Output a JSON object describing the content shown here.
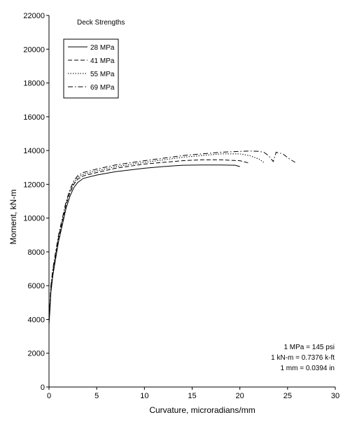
{
  "chart_data": {
    "type": "line",
    "xlabel": "Curvature, microradians/mm",
    "ylabel": "Moment, kN-m",
    "xlim": [
      0,
      30
    ],
    "ylim": [
      0,
      22000
    ],
    "x_ticks": [
      0,
      5,
      10,
      15,
      20,
      25,
      30
    ],
    "y_ticks": [
      0,
      2000,
      4000,
      6000,
      8000,
      10000,
      12000,
      14000,
      16000,
      18000,
      20000,
      22000
    ],
    "grid": false,
    "legend_title": "Deck Strengths",
    "legend_position": "top-left",
    "series": [
      {
        "name": "28 MPa",
        "dash": "solid",
        "points": [
          [
            0,
            3700
          ],
          [
            0.1,
            4600
          ],
          [
            0.2,
            5600
          ],
          [
            0.4,
            6600
          ],
          [
            0.7,
            7600
          ],
          [
            1.0,
            8600
          ],
          [
            1.4,
            9600
          ],
          [
            1.8,
            10600
          ],
          [
            2.2,
            11300
          ],
          [
            2.6,
            11800
          ],
          [
            3.0,
            12100
          ],
          [
            3.6,
            12350
          ],
          [
            5,
            12550
          ],
          [
            7,
            12750
          ],
          [
            10,
            12950
          ],
          [
            12,
            13050
          ],
          [
            14,
            13130
          ],
          [
            16,
            13140
          ],
          [
            18,
            13140
          ],
          [
            19.5,
            13130
          ],
          [
            20,
            13050
          ]
        ]
      },
      {
        "name": "41 MPa",
        "dash": "dashed",
        "points": [
          [
            0,
            3900
          ],
          [
            0.1,
            4800
          ],
          [
            0.2,
            5800
          ],
          [
            0.4,
            6800
          ],
          [
            0.7,
            7800
          ],
          [
            1.0,
            8800
          ],
          [
            1.4,
            9800
          ],
          [
            1.8,
            10800
          ],
          [
            2.2,
            11500
          ],
          [
            2.6,
            12000
          ],
          [
            3.0,
            12300
          ],
          [
            3.6,
            12500
          ],
          [
            5,
            12700
          ],
          [
            7,
            12950
          ],
          [
            10,
            13200
          ],
          [
            12,
            13300
          ],
          [
            14,
            13400
          ],
          [
            16,
            13450
          ],
          [
            18,
            13450
          ],
          [
            20,
            13400
          ],
          [
            21,
            13250
          ]
        ]
      },
      {
        "name": "55 MPa",
        "dash": "dotted",
        "points": [
          [
            0,
            4000
          ],
          [
            0.1,
            4900
          ],
          [
            0.2,
            5900
          ],
          [
            0.4,
            6900
          ],
          [
            0.7,
            7900
          ],
          [
            1.0,
            8900
          ],
          [
            1.4,
            9900
          ],
          [
            1.8,
            10900
          ],
          [
            2.2,
            11600
          ],
          [
            2.6,
            12100
          ],
          [
            3.0,
            12400
          ],
          [
            3.6,
            12600
          ],
          [
            5,
            12800
          ],
          [
            7,
            13050
          ],
          [
            10,
            13300
          ],
          [
            12,
            13450
          ],
          [
            14,
            13600
          ],
          [
            16,
            13700
          ],
          [
            18,
            13800
          ],
          [
            20,
            13800
          ],
          [
            21,
            13700
          ],
          [
            22,
            13500
          ],
          [
            22.5,
            13300
          ]
        ]
      },
      {
        "name": "69 MPa",
        "dash": "dashdot",
        "points": [
          [
            0,
            4100
          ],
          [
            0.1,
            5000
          ],
          [
            0.2,
            6000
          ],
          [
            0.4,
            7000
          ],
          [
            0.7,
            8000
          ],
          [
            1.0,
            9000
          ],
          [
            1.4,
            10000
          ],
          [
            1.8,
            11000
          ],
          [
            2.2,
            11700
          ],
          [
            2.6,
            12200
          ],
          [
            3.0,
            12500
          ],
          [
            3.6,
            12700
          ],
          [
            5,
            12900
          ],
          [
            7,
            13150
          ],
          [
            10,
            13400
          ],
          [
            12,
            13550
          ],
          [
            14,
            13700
          ],
          [
            16,
            13800
          ],
          [
            18,
            13900
          ],
          [
            20,
            13950
          ],
          [
            21,
            13970
          ],
          [
            22,
            13950
          ],
          [
            22.5,
            13900
          ],
          [
            23,
            13700
          ],
          [
            23.5,
            13350
          ],
          [
            23.8,
            13900
          ],
          [
            24.5,
            13800
          ],
          [
            25.2,
            13500
          ],
          [
            25.8,
            13300
          ]
        ]
      }
    ],
    "notes": [
      "1 MPa = 145 psi",
      "1 kN-m = 0.7376 k-ft",
      "1 mm = 0.0394 in"
    ]
  }
}
